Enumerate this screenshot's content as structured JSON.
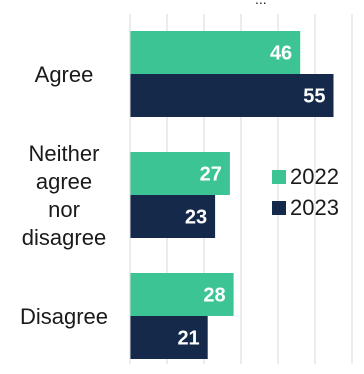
{
  "chart_data": {
    "type": "bar",
    "orientation": "horizontal",
    "categories": [
      "Agree",
      "Neither agree nor disagree",
      "Disagree"
    ],
    "category_label_lines": [
      [
        "Agree"
      ],
      [
        "Neither",
        "agree",
        "nor",
        "disagree"
      ],
      [
        "Disagree"
      ]
    ],
    "series": [
      {
        "name": "2022",
        "values": [
          46,
          27,
          28
        ],
        "color": "#3dc495"
      },
      {
        "name": "2023",
        "values": [
          55,
          23,
          21
        ],
        "color": "#152a4a"
      }
    ],
    "xlim": [
      0,
      60
    ],
    "grid": true,
    "legend_position": "right",
    "top_text_fragment": "..."
  }
}
